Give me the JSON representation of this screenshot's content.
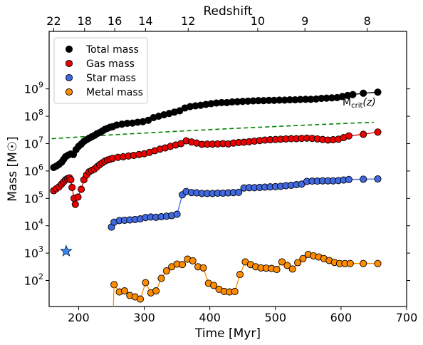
{
  "chart_data": {
    "type": "line",
    "xlabel": "Time [Myr]",
    "ylabel": "Mass [M☉]",
    "top_axis_label": "Redshift",
    "x_range": [
      155,
      700
    ],
    "y_range_log10": [
      1.05,
      11.1
    ],
    "x_ticks": [
      200,
      300,
      400,
      500,
      600,
      700
    ],
    "y_ticks": [
      {
        "base": "10",
        "exp": "2",
        "log": 2
      },
      {
        "base": "10",
        "exp": "3",
        "log": 3
      },
      {
        "base": "10",
        "exp": "4",
        "log": 4
      },
      {
        "base": "10",
        "exp": "5",
        "log": 5
      },
      {
        "base": "10",
        "exp": "6",
        "log": 6
      },
      {
        "base": "10",
        "exp": "7",
        "log": 7
      },
      {
        "base": "10",
        "exp": "8",
        "log": 8
      },
      {
        "base": "10",
        "exp": "9",
        "log": 9
      }
    ],
    "top_ticks": [
      {
        "label": "22",
        "time": 162
      },
      {
        "label": "18",
        "time": 209
      },
      {
        "label": "16",
        "time": 255
      },
      {
        "label": "14",
        "time": 302
      },
      {
        "label": "12",
        "time": 367
      },
      {
        "label": "10",
        "time": 473
      },
      {
        "label": "9",
        "time": 545
      },
      {
        "label": "8",
        "time": 640
      }
    ],
    "legend_position": "top-left",
    "series": [
      {
        "name": "Total mass",
        "color": "#000000",
        "line_color": "#000000",
        "points": [
          [
            162,
            6.13
          ],
          [
            166,
            6.18
          ],
          [
            170,
            6.24
          ],
          [
            174,
            6.32
          ],
          [
            177,
            6.42
          ],
          [
            180,
            6.52
          ],
          [
            184,
            6.58
          ],
          [
            188,
            6.62
          ],
          [
            192,
            6.6
          ],
          [
            196,
            6.78
          ],
          [
            200,
            6.9
          ],
          [
            204,
            6.98
          ],
          [
            208,
            7.08
          ],
          [
            212,
            7.14
          ],
          [
            216,
            7.2
          ],
          [
            220,
            7.25
          ],
          [
            224,
            7.3
          ],
          [
            228,
            7.36
          ],
          [
            232,
            7.4
          ],
          [
            236,
            7.46
          ],
          [
            240,
            7.52
          ],
          [
            244,
            7.56
          ],
          [
            248,
            7.6
          ],
          [
            252,
            7.62
          ],
          [
            258,
            7.68
          ],
          [
            266,
            7.71
          ],
          [
            274,
            7.74
          ],
          [
            282,
            7.75
          ],
          [
            290,
            7.78
          ],
          [
            298,
            7.8
          ],
          [
            306,
            7.85
          ],
          [
            314,
            7.95
          ],
          [
            322,
            8.0
          ],
          [
            330,
            8.05
          ],
          [
            338,
            8.1
          ],
          [
            346,
            8.15
          ],
          [
            354,
            8.2
          ],
          [
            362,
            8.3
          ],
          [
            370,
            8.35
          ],
          [
            378,
            8.38
          ],
          [
            386,
            8.4
          ],
          [
            394,
            8.43
          ],
          [
            402,
            8.46
          ],
          [
            410,
            8.48
          ],
          [
            418,
            8.5
          ],
          [
            426,
            8.5
          ],
          [
            434,
            8.52
          ],
          [
            442,
            8.53
          ],
          [
            450,
            8.54
          ],
          [
            458,
            8.55
          ],
          [
            466,
            8.56
          ],
          [
            474,
            8.57
          ],
          [
            482,
            8.57
          ],
          [
            490,
            8.58
          ],
          [
            498,
            8.58
          ],
          [
            506,
            8.59
          ],
          [
            514,
            8.59
          ],
          [
            522,
            8.6
          ],
          [
            530,
            8.6
          ],
          [
            538,
            8.61
          ],
          [
            546,
            8.62
          ],
          [
            554,
            8.62
          ],
          [
            562,
            8.63
          ],
          [
            570,
            8.65
          ],
          [
            578,
            8.66
          ],
          [
            586,
            8.67
          ],
          [
            594,
            8.68
          ],
          [
            602,
            8.72
          ],
          [
            610,
            8.76
          ],
          [
            618,
            8.79
          ],
          [
            634,
            8.84
          ],
          [
            656,
            8.88
          ]
        ]
      },
      {
        "name": "Gas mass",
        "color": "#ee0000",
        "line_color": "#ee0000",
        "points": [
          [
            162,
            5.28
          ],
          [
            166,
            5.35
          ],
          [
            170,
            5.42
          ],
          [
            174,
            5.52
          ],
          [
            177,
            5.6
          ],
          [
            180,
            5.68
          ],
          [
            183,
            5.72
          ],
          [
            186,
            5.75
          ],
          [
            188,
            5.68
          ],
          [
            190,
            5.4
          ],
          [
            193,
            5.0
          ],
          [
            195,
            4.78
          ],
          [
            199,
            5.05
          ],
          [
            204,
            5.33
          ],
          [
            208,
            5.68
          ],
          [
            212,
            5.85
          ],
          [
            216,
            5.97
          ],
          [
            220,
            6.02
          ],
          [
            224,
            6.07
          ],
          [
            228,
            6.15
          ],
          [
            232,
            6.23
          ],
          [
            236,
            6.3
          ],
          [
            240,
            6.36
          ],
          [
            244,
            6.4
          ],
          [
            248,
            6.43
          ],
          [
            252,
            6.46
          ],
          [
            260,
            6.5
          ],
          [
            268,
            6.52
          ],
          [
            276,
            6.55
          ],
          [
            284,
            6.57
          ],
          [
            292,
            6.6
          ],
          [
            300,
            6.63
          ],
          [
            308,
            6.68
          ],
          [
            316,
            6.74
          ],
          [
            324,
            6.8
          ],
          [
            332,
            6.84
          ],
          [
            340,
            6.9
          ],
          [
            348,
            6.95
          ],
          [
            356,
            7.0
          ],
          [
            364,
            7.1
          ],
          [
            372,
            7.06
          ],
          [
            380,
            7.02
          ],
          [
            388,
            6.97
          ],
          [
            396,
            6.98
          ],
          [
            404,
            6.98
          ],
          [
            412,
            6.99
          ],
          [
            420,
            7.0
          ],
          [
            428,
            6.99
          ],
          [
            436,
            7.02
          ],
          [
            444,
            7.04
          ],
          [
            452,
            7.05
          ],
          [
            460,
            7.07
          ],
          [
            468,
            7.09
          ],
          [
            476,
            7.11
          ],
          [
            484,
            7.13
          ],
          [
            492,
            7.14
          ],
          [
            500,
            7.15
          ],
          [
            508,
            7.16
          ],
          [
            516,
            7.17
          ],
          [
            524,
            7.18
          ],
          [
            532,
            7.18
          ],
          [
            540,
            7.19
          ],
          [
            548,
            7.2
          ],
          [
            556,
            7.19
          ],
          [
            564,
            7.17
          ],
          [
            572,
            7.15
          ],
          [
            580,
            7.13
          ],
          [
            588,
            7.14
          ],
          [
            596,
            7.16
          ],
          [
            604,
            7.22
          ],
          [
            612,
            7.28
          ],
          [
            634,
            7.34
          ],
          [
            656,
            7.42
          ]
        ]
      },
      {
        "name": "Star mass",
        "color": "#4169e1",
        "line_color": "#4169e1",
        "points": [
          [
            250,
            3.95
          ],
          [
            254,
            4.13
          ],
          [
            262,
            4.19
          ],
          [
            270,
            4.2
          ],
          [
            278,
            4.21
          ],
          [
            286,
            4.23
          ],
          [
            294,
            4.25
          ],
          [
            302,
            4.3
          ],
          [
            310,
            4.32
          ],
          [
            318,
            4.31
          ],
          [
            326,
            4.33
          ],
          [
            334,
            4.35
          ],
          [
            342,
            4.37
          ],
          [
            350,
            4.42
          ],
          [
            358,
            5.13
          ],
          [
            364,
            5.25
          ],
          [
            372,
            5.21
          ],
          [
            380,
            5.2
          ],
          [
            388,
            5.18
          ],
          [
            396,
            5.18
          ],
          [
            404,
            5.18
          ],
          [
            412,
            5.19
          ],
          [
            420,
            5.19
          ],
          [
            428,
            5.2
          ],
          [
            436,
            5.21
          ],
          [
            444,
            5.22
          ],
          [
            452,
            5.38
          ],
          [
            460,
            5.39
          ],
          [
            468,
            5.39
          ],
          [
            476,
            5.4
          ],
          [
            484,
            5.41
          ],
          [
            492,
            5.42
          ],
          [
            500,
            5.43
          ],
          [
            508,
            5.44
          ],
          [
            516,
            5.46
          ],
          [
            524,
            5.48
          ],
          [
            532,
            5.5
          ],
          [
            540,
            5.52
          ],
          [
            548,
            5.62
          ],
          [
            556,
            5.63
          ],
          [
            564,
            5.63
          ],
          [
            572,
            5.64
          ],
          [
            580,
            5.64
          ],
          [
            588,
            5.64
          ],
          [
            596,
            5.65
          ],
          [
            604,
            5.67
          ],
          [
            612,
            5.69
          ],
          [
            634,
            5.7
          ],
          [
            656,
            5.71
          ]
        ]
      },
      {
        "name": "Metal mass",
        "color": "#ff8c00",
        "line_color": "#ff8c00",
        "points": [
          [
            254,
            1.85
          ],
          [
            262,
            1.58
          ],
          [
            270,
            1.62
          ],
          [
            278,
            1.45
          ],
          [
            286,
            1.4
          ],
          [
            294,
            1.32
          ],
          [
            302,
            1.92
          ],
          [
            310,
            1.55
          ],
          [
            318,
            1.62
          ],
          [
            326,
            2.08
          ],
          [
            334,
            2.35
          ],
          [
            342,
            2.5
          ],
          [
            350,
            2.6
          ],
          [
            358,
            2.58
          ],
          [
            366,
            2.78
          ],
          [
            374,
            2.72
          ],
          [
            382,
            2.5
          ],
          [
            390,
            2.46
          ],
          [
            398,
            1.9
          ],
          [
            406,
            1.82
          ],
          [
            414,
            1.68
          ],
          [
            422,
            1.6
          ],
          [
            430,
            1.58
          ],
          [
            438,
            1.6
          ],
          [
            446,
            2.22
          ],
          [
            454,
            2.68
          ],
          [
            462,
            2.58
          ],
          [
            470,
            2.5
          ],
          [
            478,
            2.46
          ],
          [
            486,
            2.45
          ],
          [
            494,
            2.44
          ],
          [
            502,
            2.4
          ],
          [
            510,
            2.68
          ],
          [
            518,
            2.55
          ],
          [
            526,
            2.42
          ],
          [
            534,
            2.65
          ],
          [
            542,
            2.8
          ],
          [
            550,
            2.95
          ],
          [
            558,
            2.9
          ],
          [
            566,
            2.86
          ],
          [
            574,
            2.8
          ],
          [
            582,
            2.73
          ],
          [
            590,
            2.66
          ],
          [
            598,
            2.62
          ],
          [
            606,
            2.62
          ],
          [
            614,
            2.62
          ],
          [
            634,
            2.62
          ],
          [
            656,
            2.62
          ]
        ]
      }
    ],
    "mcrit_line": {
      "label_base": "M",
      "label_sub": "crit",
      "label_arg": "(z)",
      "color": "#008000",
      "points": [
        [
          159,
          7.18
        ],
        [
          250,
          7.32
        ],
        [
          350,
          7.45
        ],
        [
          450,
          7.57
        ],
        [
          550,
          7.68
        ],
        [
          650,
          7.78
        ]
      ]
    },
    "star_marker": {
      "time": 181,
      "log_mass": 3.07,
      "color": "#3a86e8"
    }
  }
}
